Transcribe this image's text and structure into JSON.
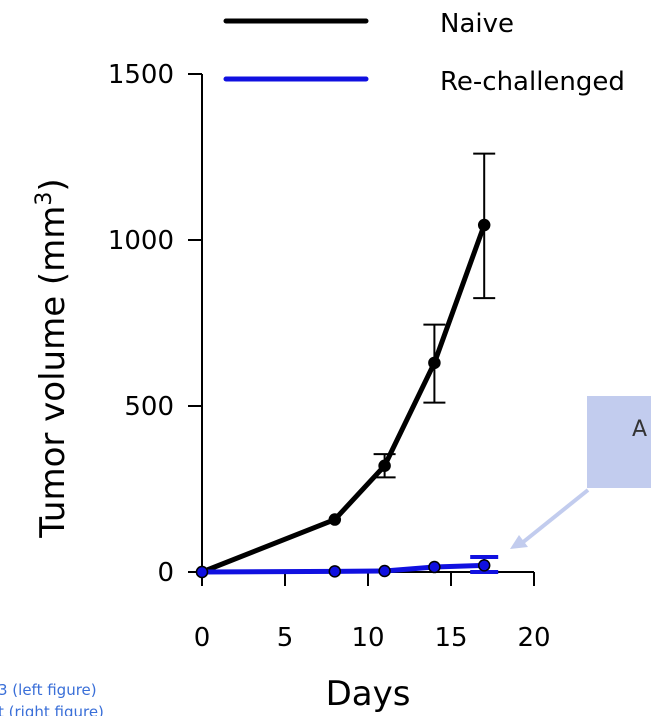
{
  "chart_data": {
    "type": "line",
    "xlabel": "Days",
    "ylabel": "Tumor volume (mm",
    "ylabel_superscript": "3",
    "ylabel_close": ")",
    "xlim": [
      0,
      20
    ],
    "ylim": [
      0,
      1500
    ],
    "x_ticks": [
      0,
      5,
      10,
      15,
      20
    ],
    "y_ticks": [
      0,
      500,
      1000,
      1500
    ],
    "grid": false,
    "legend_position": "top",
    "series": [
      {
        "name": "Naive",
        "color": "#000000",
        "points": [
          {
            "x": 0,
            "y": 0
          },
          {
            "x": 8,
            "y": 158
          },
          {
            "x": 11,
            "y": 320,
            "err_lo": 285,
            "err_hi": 355
          },
          {
            "x": 14,
            "y": 630,
            "err_lo": 510,
            "err_hi": 745
          },
          {
            "x": 17,
            "y": 1045,
            "err_lo": 825,
            "err_hi": 1260
          }
        ]
      },
      {
        "name": "Re-challenged",
        "color": "#1010e0",
        "points": [
          {
            "x": 0,
            "y": 0
          },
          {
            "x": 8,
            "y": 2
          },
          {
            "x": 11,
            "y": 3
          },
          {
            "x": 14,
            "y": 15
          },
          {
            "x": 17,
            "y": 20,
            "err_lo": 0,
            "err_hi": 45
          }
        ]
      }
    ]
  },
  "callout": {
    "text": "A",
    "fill": "#c2ccee"
  },
  "footnotes": [
    "",
    "3 (left figure)",
    "t (right figure)"
  ]
}
